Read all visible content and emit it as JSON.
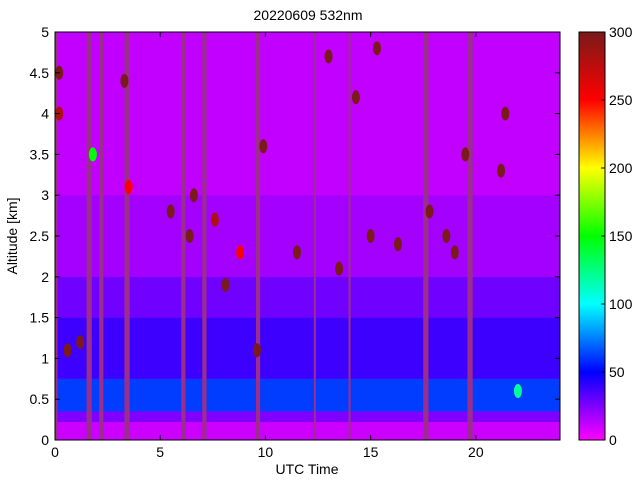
{
  "chart_data": {
    "type": "heatmap",
    "title": "20220609 532nm",
    "xlabel": "UTC Time",
    "ylabel": "Altitude [km]",
    "xlim": [
      0,
      24
    ],
    "ylim": [
      0,
      5
    ],
    "x_ticks": [
      0,
      5,
      10,
      15,
      20
    ],
    "y_ticks": [
      0,
      0.5,
      1,
      1.5,
      2,
      2.5,
      3,
      3.5,
      4,
      4.5,
      5
    ],
    "y_tick_labels": [
      "0",
      "0.5",
      "1",
      "1.5",
      "2",
      "2.5",
      "3",
      "3.5",
      "4",
      "4.5",
      "5"
    ],
    "colorbar": {
      "range": [
        0,
        300
      ],
      "ticks": [
        0,
        50,
        100,
        150,
        200,
        250,
        300
      ],
      "colormap": [
        "#ff00ff",
        "#0000ff",
        "#00ffff",
        "#00ff00",
        "#ffff00",
        "#ff0000",
        "#7a1a1a"
      ]
    },
    "grid": false,
    "layers": [
      {
        "alt_from": 0.0,
        "alt_to": 0.22,
        "value": 10
      },
      {
        "alt_from": 0.22,
        "alt_to": 0.35,
        "value": 25
      },
      {
        "alt_from": 0.35,
        "alt_to": 0.75,
        "value": 62
      },
      {
        "alt_from": 0.75,
        "alt_to": 1.5,
        "value": 38
      },
      {
        "alt_from": 1.5,
        "alt_to": 2.0,
        "value": 28
      },
      {
        "alt_from": 2.0,
        "alt_to": 3.0,
        "value": 18
      },
      {
        "alt_from": 3.0,
        "alt_to": 5.0,
        "value": 12
      }
    ],
    "gaps": [
      {
        "from": 0.0,
        "to": 0.12
      },
      {
        "from": 1.5,
        "to": 1.75
      },
      {
        "from": 2.1,
        "to": 2.3
      },
      {
        "from": 3.3,
        "to": 3.55
      },
      {
        "from": 6.0,
        "to": 6.2
      },
      {
        "from": 7.0,
        "to": 7.2
      },
      {
        "from": 9.55,
        "to": 9.75
      },
      {
        "from": 12.3,
        "to": 12.4
      },
      {
        "from": 13.95,
        "to": 14.05
      },
      {
        "from": 17.5,
        "to": 17.75
      },
      {
        "from": 19.6,
        "to": 19.85
      }
    ],
    "clouds": [
      {
        "t": 0.2,
        "alt": 4.5,
        "value": 300
      },
      {
        "t": 0.2,
        "alt": 4.0,
        "value": 280
      },
      {
        "t": 0.6,
        "alt": 1.1,
        "value": 300
      },
      {
        "t": 1.2,
        "alt": 1.2,
        "value": 300
      },
      {
        "t": 1.8,
        "alt": 3.5,
        "value": 150
      },
      {
        "t": 3.3,
        "alt": 4.4,
        "value": 300
      },
      {
        "t": 3.5,
        "alt": 3.1,
        "value": 250
      },
      {
        "t": 5.5,
        "alt": 2.8,
        "value": 300
      },
      {
        "t": 6.4,
        "alt": 2.5,
        "value": 300
      },
      {
        "t": 6.6,
        "alt": 3.0,
        "value": 300
      },
      {
        "t": 7.6,
        "alt": 2.7,
        "value": 280
      },
      {
        "t": 8.1,
        "alt": 1.9,
        "value": 300
      },
      {
        "t": 8.8,
        "alt": 2.3,
        "value": 250
      },
      {
        "t": 9.6,
        "alt": 1.1,
        "value": 300
      },
      {
        "t": 9.9,
        "alt": 3.6,
        "value": 300
      },
      {
        "t": 11.5,
        "alt": 2.3,
        "value": 300
      },
      {
        "t": 13.0,
        "alt": 4.7,
        "value": 300
      },
      {
        "t": 13.5,
        "alt": 2.1,
        "value": 300
      },
      {
        "t": 14.3,
        "alt": 4.2,
        "value": 300
      },
      {
        "t": 15.0,
        "alt": 2.5,
        "value": 300
      },
      {
        "t": 15.3,
        "alt": 4.8,
        "value": 300
      },
      {
        "t": 16.3,
        "alt": 2.4,
        "value": 300
      },
      {
        "t": 17.8,
        "alt": 2.8,
        "value": 300
      },
      {
        "t": 18.6,
        "alt": 2.5,
        "value": 300
      },
      {
        "t": 19.0,
        "alt": 2.3,
        "value": 300
      },
      {
        "t": 19.5,
        "alt": 3.5,
        "value": 300
      },
      {
        "t": 21.2,
        "alt": 3.3,
        "value": 300
      },
      {
        "t": 21.4,
        "alt": 4.0,
        "value": 300
      },
      {
        "t": 22.0,
        "alt": 0.6,
        "value": 120
      }
    ]
  }
}
